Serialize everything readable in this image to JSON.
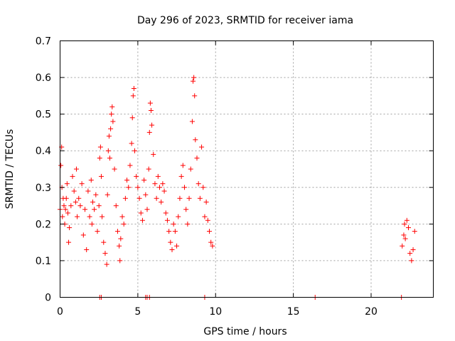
{
  "chart_data": {
    "type": "scatter",
    "title": "Day 296 of 2023, SRMTID for receiver iama",
    "xlabel": "GPS time / hours",
    "ylabel": "SRMTID / TECUs",
    "xlim": [
      0,
      24
    ],
    "ylim": [
      0,
      0.7
    ],
    "xticks": [
      0,
      5,
      10,
      15,
      20
    ],
    "yticks": [
      0,
      0.1,
      0.2,
      0.3,
      0.4,
      0.5,
      0.6,
      0.7
    ],
    "xtick_labels": [
      "0",
      "5",
      "10",
      "15",
      "20"
    ],
    "ytick_labels": [
      "0",
      "0.1",
      "0.2",
      "0.3",
      "0.4",
      "0.5",
      "0.6",
      "0.7"
    ],
    "grid": true,
    "legend": "none",
    "marker": "plus",
    "color": "#ff0000",
    "series": [
      {
        "x": [
          0.0,
          0.05,
          0.1,
          0.12,
          0.15,
          0.2,
          0.25,
          0.3,
          0.35,
          0.4,
          0.45,
          0.5,
          0.55,
          0.6,
          0.7,
          0.8,
          0.9,
          1.0,
          1.05,
          1.1,
          1.2,
          1.3,
          1.4,
          1.5,
          1.6,
          1.7,
          1.8,
          1.9,
          2.0,
          2.05,
          2.1,
          2.2,
          2.3,
          2.4,
          2.5,
          2.55,
          2.6,
          2.65,
          2.7,
          2.8,
          2.9,
          3.0,
          3.05,
          3.1,
          3.15,
          3.2,
          3.25,
          3.3,
          3.35,
          3.4,
          3.5,
          3.6,
          3.7,
          3.8,
          3.85,
          3.9,
          4.0,
          4.1,
          4.2,
          4.3,
          4.4,
          4.5,
          4.6,
          4.65,
          4.7,
          4.75,
          4.8,
          4.9,
          5.0,
          5.1,
          5.2,
          5.3,
          5.4,
          5.5,
          5.6,
          5.7,
          5.75,
          5.8,
          5.85,
          5.9,
          6.0,
          6.1,
          6.2,
          6.3,
          6.4,
          6.5,
          6.6,
          6.7,
          6.8,
          6.9,
          7.0,
          7.1,
          7.2,
          7.3,
          7.4,
          7.5,
          7.6,
          7.7,
          7.8,
          7.9,
          8.0,
          8.1,
          8.2,
          8.3,
          8.4,
          8.5,
          8.55,
          8.6,
          8.65,
          8.7,
          8.8,
          8.9,
          9.0,
          9.1,
          9.2,
          9.3,
          9.4,
          9.5,
          9.6,
          9.7,
          9.8,
          22.0,
          22.1,
          22.15,
          22.2,
          22.3,
          22.4,
          22.5,
          22.6,
          22.7,
          22.8
        ],
        "y": [
          0.24,
          0.36,
          0.41,
          0.3,
          0.22,
          0.27,
          0.25,
          0.2,
          0.24,
          0.27,
          0.31,
          0.23,
          0.15,
          0.19,
          0.25,
          0.33,
          0.29,
          0.26,
          0.35,
          0.22,
          0.27,
          0.25,
          0.31,
          0.17,
          0.24,
          0.13,
          0.29,
          0.22,
          0.32,
          0.2,
          0.26,
          0.24,
          0.28,
          0.18,
          0.25,
          0.38,
          0.41,
          0.33,
          0.22,
          0.15,
          0.12,
          0.09,
          0.28,
          0.4,
          0.44,
          0.38,
          0.46,
          0.5,
          0.52,
          0.48,
          0.35,
          0.25,
          0.18,
          0.14,
          0.1,
          0.16,
          0.22,
          0.2,
          0.27,
          0.32,
          0.3,
          0.36,
          0.42,
          0.49,
          0.55,
          0.57,
          0.4,
          0.33,
          0.3,
          0.27,
          0.23,
          0.21,
          0.32,
          0.28,
          0.24,
          0.35,
          0.45,
          0.53,
          0.51,
          0.47,
          0.39,
          0.31,
          0.27,
          0.33,
          0.3,
          0.26,
          0.31,
          0.29,
          0.23,
          0.21,
          0.18,
          0.15,
          0.13,
          0.2,
          0.18,
          0.14,
          0.22,
          0.27,
          0.33,
          0.36,
          0.3,
          0.24,
          0.2,
          0.27,
          0.35,
          0.48,
          0.59,
          0.6,
          0.55,
          0.43,
          0.38,
          0.31,
          0.27,
          0.41,
          0.3,
          0.22,
          0.26,
          0.21,
          0.18,
          0.15,
          0.14,
          0.14,
          0.17,
          0.2,
          0.16,
          0.21,
          0.19,
          0.12,
          0.1,
          0.13,
          0.18
        ],
        "markers_at_zero_x": [
          2.55,
          2.65,
          5.5,
          5.6,
          5.75,
          9.3,
          16.4,
          21.95
        ]
      }
    ]
  }
}
